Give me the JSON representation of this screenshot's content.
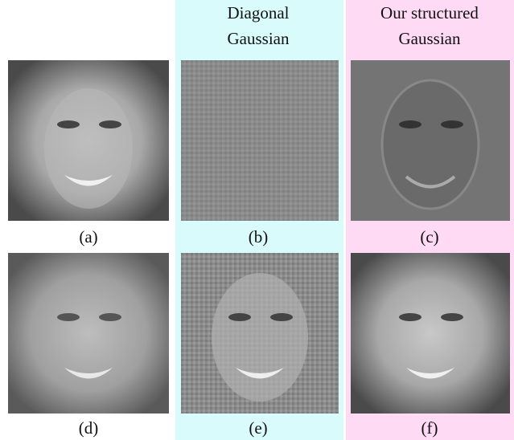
{
  "headers": [
    {
      "lines": [
        "Diagonal",
        "Gaussian"
      ]
    },
    {
      "lines": [
        "Our structured",
        "Gaussian"
      ]
    }
  ],
  "captions": [
    "(a)",
    "(b)",
    "(c)",
    "(d)",
    "(e)",
    "(f)"
  ]
}
